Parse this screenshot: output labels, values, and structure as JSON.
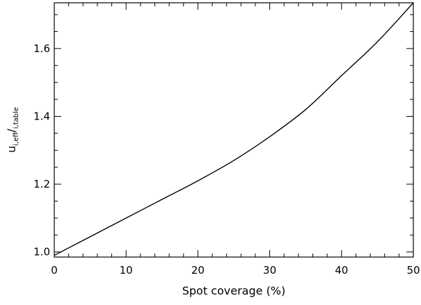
{
  "chart_data": {
    "type": "line",
    "title": "",
    "xlabel": "Spot coverage (%)",
    "ylabel": {
      "main": "u",
      "num_sub": "i,eff",
      "slash": "/",
      "den_sub": "i,table"
    },
    "xlim": [
      0,
      50
    ],
    "ylim": [
      0.985,
      1.735
    ],
    "x_ticks": [
      0,
      10,
      20,
      30,
      40,
      50
    ],
    "y_ticks": [
      1.0,
      1.2,
      1.4,
      1.6
    ],
    "x_tick_labels": [
      "0",
      "10",
      "20",
      "30",
      "40",
      "50"
    ],
    "y_tick_labels": [
      "1.0",
      "1.2",
      "1.4",
      "1.6"
    ],
    "grid": false,
    "series": [
      {
        "x": [
          0,
          5,
          10,
          15,
          20,
          25,
          30,
          35,
          40,
          45,
          50
        ],
        "values": [
          0.99,
          1.045,
          1.1,
          1.155,
          1.21,
          1.27,
          1.34,
          1.42,
          1.52,
          1.62,
          1.74
        ]
      }
    ]
  }
}
